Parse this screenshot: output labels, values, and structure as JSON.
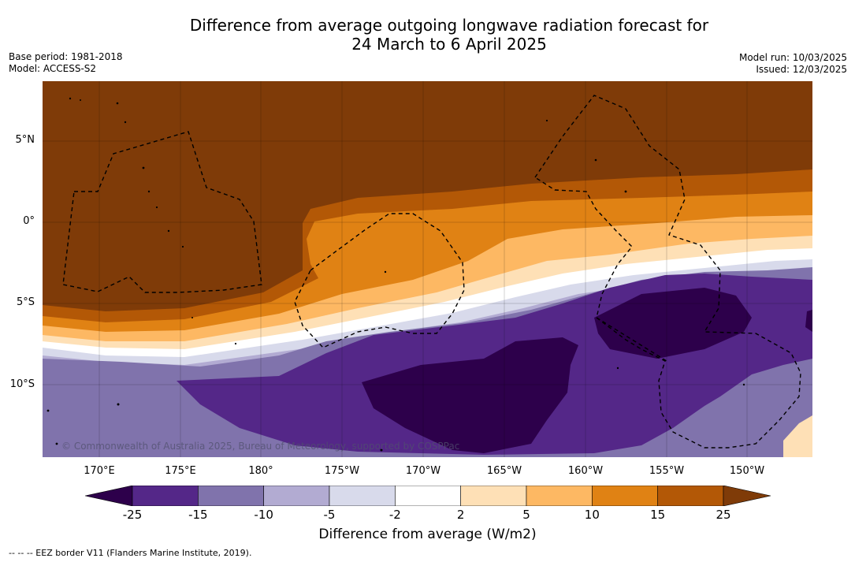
{
  "title": {
    "line1": "Difference from average outgoing longwave radiation forecast for",
    "line2": "24 March to 6 April 2025"
  },
  "meta": {
    "base_period": "Base period: 1981-2018",
    "model": "Model: ACCESS-S2",
    "model_run": "Model run: 10/03/2025",
    "issued": "Issued: 12/03/2025"
  },
  "map": {
    "lat_labels": [
      "5°N",
      "0°",
      "5°S",
      "10°S"
    ],
    "lon_labels": [
      "170°E",
      "175°E",
      "180°",
      "175°W",
      "170°W",
      "165°W",
      "160°W",
      "155°W",
      "150°W"
    ],
    "copyright": "© Commonwealth of Australia 2025, Bureau of Meteorology, supported by COSPPac"
  },
  "colorbar": {
    "ticks": [
      "-25",
      "-15",
      "-10",
      "-5",
      "-2",
      "2",
      "5",
      "10",
      "15",
      "25"
    ],
    "colors": [
      "#2d004b",
      "#542788",
      "#8073ac",
      "#b2abd2",
      "#d8daeb",
      "#ffffff",
      "#fee0b6",
      "#fdb863",
      "#e08214",
      "#b35806",
      "#7f3b08"
    ],
    "title": "Difference from average (W/m2)"
  },
  "legend": {
    "eez": "--  --  -- EEZ border V11 (Flanders Marine Institute, 2019)."
  }
}
